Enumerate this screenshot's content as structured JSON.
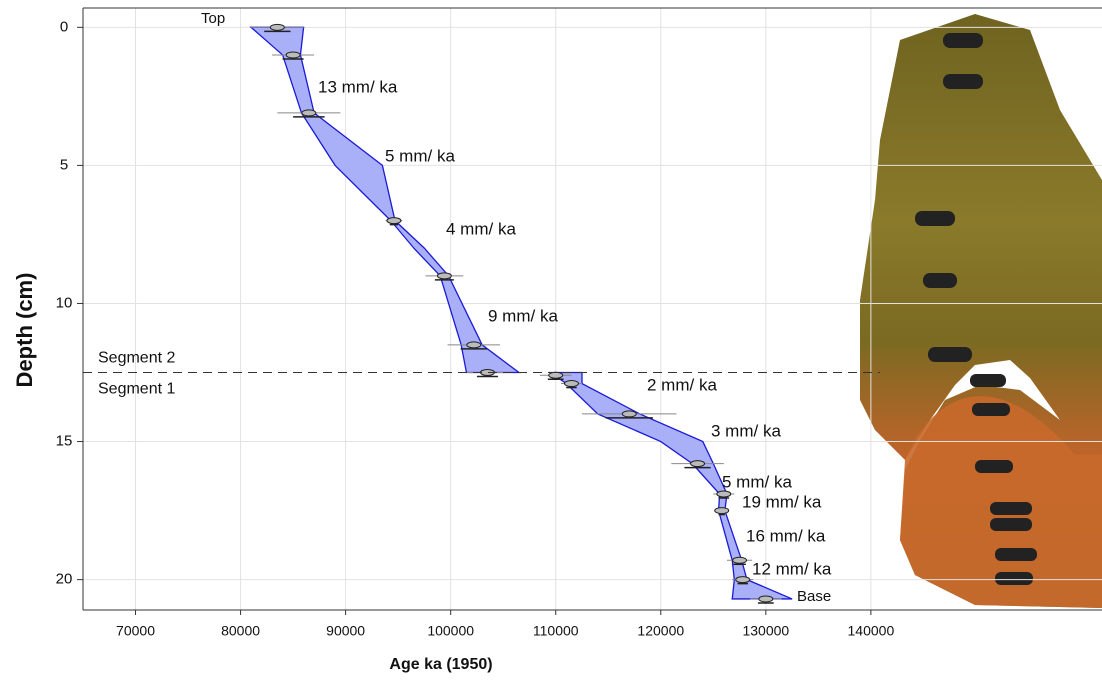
{
  "chart_data": {
    "type": "age-depth",
    "x_label": "Age ka (1950)",
    "y_label": "Depth (cm)",
    "xlim": [
      65000,
      162000
    ],
    "ylim": [
      21.1,
      -0.7
    ],
    "xticks": [
      70000,
      80000,
      90000,
      100000,
      110000,
      120000,
      130000,
      140000
    ],
    "yticks": [
      0,
      5,
      10,
      15,
      20
    ],
    "grid": true,
    "color": "#1a1ad6",
    "fill": "#aab0f7",
    "segment_boundary": 12.5,
    "segment_labels": [
      "Segment 2",
      "Segment 1"
    ],
    "top_label": "Top",
    "base_label": "Base",
    "segments": [
      {
        "depth": [
          0,
          1,
          3.1,
          5,
          7,
          8,
          9,
          11.5,
          12.5
        ],
        "min": [
          81000,
          84000,
          85800,
          89000,
          94300,
          96500,
          99000,
          101000,
          101500
        ],
        "max": [
          86000,
          85700,
          87000,
          93500,
          94700,
          97500,
          99800,
          103000,
          106500
        ]
      },
      {
        "depth": [
          12.5,
          12.9,
          14,
          15,
          15.8,
          16.9,
          17.5,
          19.3,
          20,
          20.7
        ],
        "min": [
          109500,
          111000,
          114000,
          120000,
          123000,
          125600,
          125500,
          126800,
          127000,
          126800
        ],
        "max": [
          112500,
          112500,
          118000,
          124000,
          125000,
          126300,
          126100,
          127700,
          128200,
          132500
        ]
      }
    ],
    "dates": {
      "depth": [
        0,
        1,
        3.1,
        7,
        9,
        11.5,
        12.5,
        12.6,
        12.9,
        14,
        15.8,
        16.9,
        17.5,
        19.3,
        20,
        20.7
      ],
      "age": [
        83500,
        85000,
        86500,
        94600,
        99400,
        102200,
        103500,
        110000,
        111500,
        117000,
        123500,
        126000,
        125800,
        127500,
        127800,
        130000
      ],
      "error": [
        2500,
        2000,
        3000,
        800,
        1800,
        2500,
        2000,
        1500,
        1000,
        4500,
        2500,
        1000,
        600,
        1200,
        1000,
        1500
      ]
    },
    "rates": [
      "13 mm/ ka",
      "5 mm/ ka",
      "4 mm/ ka",
      "9 mm/ ka",
      "2 mm/ ka",
      "3 mm/ ka",
      "5 mm/ ka",
      "19 mm/ ka",
      "16 mm/ ka",
      "12 mm/ ka"
    ]
  }
}
